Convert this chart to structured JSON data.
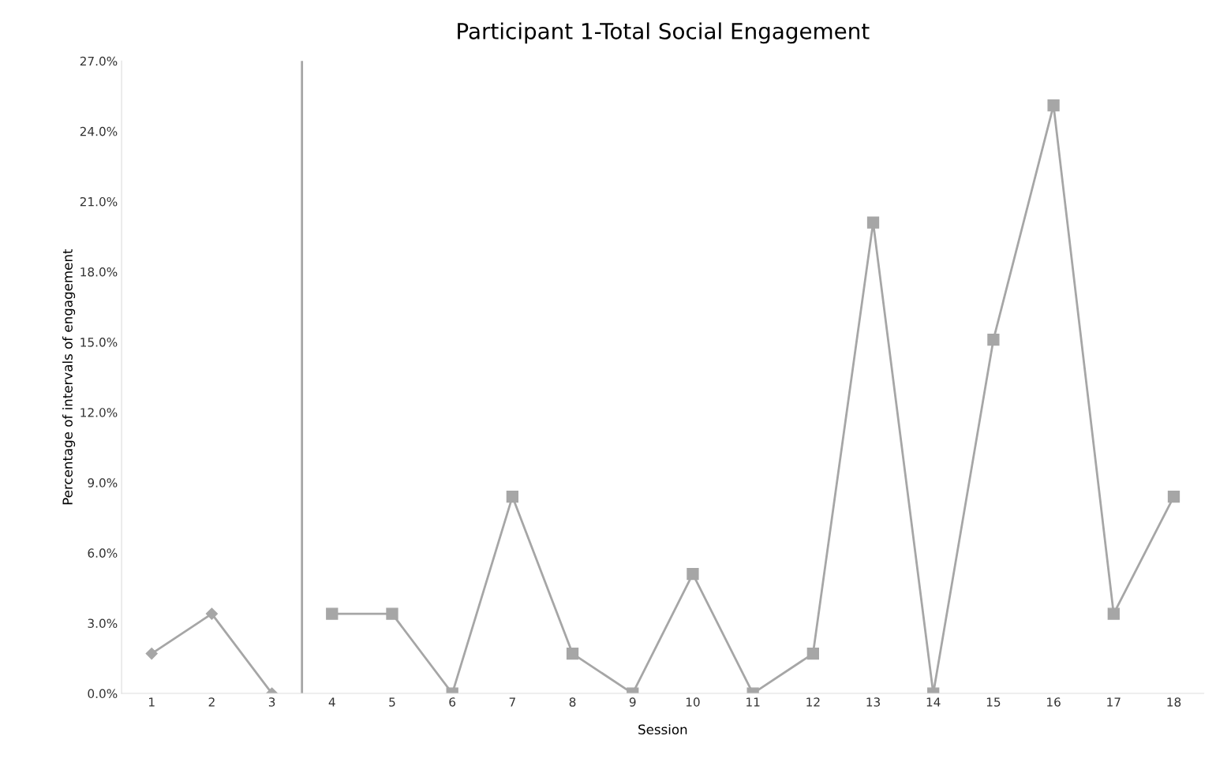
{
  "chart_data": {
    "type": "line",
    "title": "Participant 1-Total Social Engagement",
    "xlabel": "Session",
    "ylabel": "Percentage of intervals of engagement",
    "xlim": [
      0.5,
      18.5
    ],
    "xticks": [
      1,
      2,
      3,
      4,
      5,
      6,
      7,
      8,
      9,
      10,
      11,
      12,
      13,
      14,
      15,
      16,
      17,
      18
    ],
    "ylim": [
      0,
      27
    ],
    "yticks": [
      {
        "value": 0,
        "label": "0.0%"
      },
      {
        "value": 3,
        "label": "3.0%"
      },
      {
        "value": 6,
        "label": "6.0%"
      },
      {
        "value": 9,
        "label": "9.0%"
      },
      {
        "value": 12,
        "label": "12.0%"
      },
      {
        "value": 15,
        "label": "15.0%"
      },
      {
        "value": 18,
        "label": "18.0%"
      },
      {
        "value": 21,
        "label": "21.0%"
      },
      {
        "value": 24,
        "label": "24.0%"
      },
      {
        "value": 27,
        "label": "27.0%"
      }
    ],
    "grid": false,
    "legend": false,
    "series": [
      {
        "color": "#a6a6a6",
        "marker": "diamond",
        "x": [
          1,
          2,
          3
        ],
        "values": [
          1.7,
          3.4,
          0
        ]
      },
      {
        "color": "#a6a6a6",
        "marker": "square",
        "x": [
          4,
          5,
          6,
          7,
          8,
          9,
          10,
          11,
          12,
          13,
          14,
          15,
          16,
          17,
          18
        ],
        "values": [
          3.4,
          3.4,
          0,
          8.4,
          1.7,
          0,
          5.1,
          0,
          1.7,
          20.1,
          0,
          15.1,
          25.1,
          3.4,
          8.4
        ]
      }
    ],
    "ref_lines": [
      {
        "axis": "x",
        "value": 3.5,
        "color": "#a6a6a6"
      }
    ]
  }
}
